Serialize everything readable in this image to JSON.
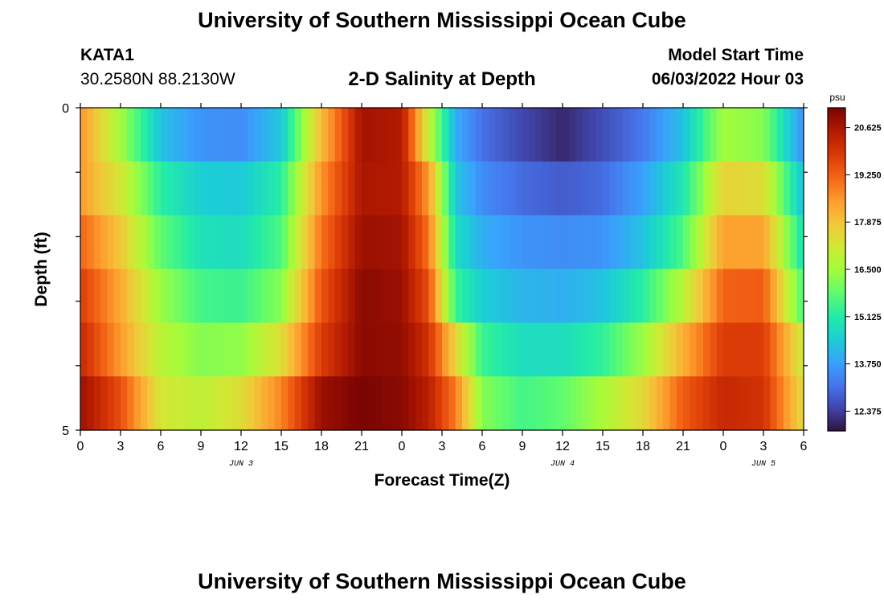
{
  "header": {
    "title": "University of Southern Mississippi Ocean Cube",
    "station_id": "KATA1",
    "coordinates": "30.2580N  88.2130W",
    "subtitle": "2-D Salinity at Depth",
    "model_start_label": "Model Start Time",
    "model_start_value": "06/03/2022 Hour 03",
    "bottom_title": "University of Southern Mississippi Ocean Cube"
  },
  "chart_data": {
    "type": "heatmap",
    "title": "2-D Salinity at Depth",
    "xlabel": "Forecast Time(Z)",
    "ylabel": "Depth (ft)",
    "x_tick_labels": [
      "0",
      "3",
      "6",
      "9",
      "12",
      "15",
      "18",
      "21",
      "0",
      "3",
      "6",
      "9",
      "12",
      "15",
      "18",
      "21",
      "0",
      "3",
      "6"
    ],
    "x_hours": [
      0,
      3,
      6,
      9,
      12,
      15,
      18,
      21,
      24,
      27,
      30,
      33,
      36,
      39,
      42,
      45,
      48,
      51,
      54
    ],
    "date_labels": [
      {
        "label": "JUN 3",
        "hour": 12
      },
      {
        "label": "JUN 4",
        "hour": 36
      },
      {
        "label": "JUN 5",
        "hour": 51
      }
    ],
    "y_tick_labels": [
      "0",
      "5"
    ],
    "ylim": [
      0,
      5
    ],
    "depth_bins": [
      "0-1",
      "1-2",
      "2-3",
      "3-4",
      "4-5"
    ],
    "colorbar": {
      "unit": "psu",
      "tick_labels": [
        "20.625",
        "19.250",
        "17.875",
        "16.500",
        "15.125",
        "13.750",
        "12.375"
      ],
      "ticks": [
        20.625,
        19.25,
        17.875,
        16.5,
        15.125,
        13.75,
        12.375
      ],
      "range": [
        11.8,
        21.2
      ],
      "colors": [
        "#30123b",
        "#4145ab",
        "#4675ed",
        "#39a2fc",
        "#1bcfd4",
        "#24eca6",
        "#61fc6c",
        "#a4fc3b",
        "#d1e834",
        "#f3c63a",
        "#fe9b2d",
        "#f36315",
        "#d93806",
        "#b11901",
        "#7a0403"
      ]
    },
    "series": [
      {
        "depth": "0-1",
        "time_hours": [
          0,
          3,
          6,
          9,
          12,
          15,
          18,
          21,
          24,
          26,
          28,
          30,
          33,
          36,
          39,
          42,
          45,
          48,
          51,
          54
        ],
        "values": [
          18.6,
          16.5,
          14.3,
          13.6,
          13.5,
          14.4,
          18.0,
          20.7,
          20.5,
          17.0,
          14.0,
          13.1,
          12.5,
          12.1,
          12.6,
          13.2,
          14.3,
          16.5,
          16.2,
          13.5
        ]
      },
      {
        "depth": "1-2",
        "time_hours": [
          0,
          3,
          6,
          9,
          12,
          15,
          18,
          21,
          24,
          26,
          28,
          30,
          33,
          36,
          39,
          42,
          45,
          48,
          51,
          54
        ],
        "values": [
          18.5,
          17.2,
          15.2,
          14.5,
          14.4,
          15.2,
          18.6,
          20.6,
          20.5,
          18.5,
          14.4,
          13.5,
          13.0,
          12.8,
          13.0,
          13.8,
          15.0,
          17.6,
          17.4,
          14.2
        ]
      },
      {
        "depth": "2-3",
        "time_hours": [
          0,
          3,
          6,
          9,
          12,
          15,
          18,
          21,
          24,
          26,
          28,
          30,
          33,
          36,
          39,
          42,
          45,
          48,
          51,
          54
        ],
        "values": [
          19.2,
          17.8,
          15.8,
          14.9,
          14.8,
          15.6,
          19.0,
          20.8,
          20.7,
          19.0,
          14.8,
          14.0,
          13.6,
          13.5,
          13.6,
          14.3,
          15.6,
          18.4,
          18.4,
          14.8
        ]
      },
      {
        "depth": "3-4",
        "time_hours": [
          0,
          3,
          6,
          9,
          12,
          15,
          18,
          21,
          24,
          26,
          28,
          30,
          33,
          36,
          39,
          42,
          45,
          48,
          51,
          54
        ],
        "values": [
          19.8,
          18.3,
          16.4,
          15.5,
          15.4,
          16.2,
          19.4,
          21.0,
          20.8,
          19.5,
          15.4,
          14.5,
          14.1,
          14.0,
          14.3,
          15.2,
          16.8,
          19.2,
          19.3,
          15.5
        ]
      },
      {
        "depth": "4-5",
        "time_hours": [
          0,
          3,
          6,
          9,
          12,
          15,
          18,
          21,
          24,
          26,
          28,
          30,
          33,
          36,
          39,
          42,
          45,
          48,
          51,
          54
        ],
        "values": [
          20.2,
          18.5,
          16.8,
          16.2,
          16.3,
          17.4,
          19.8,
          21.0,
          20.9,
          20.0,
          17.6,
          15.4,
          14.8,
          14.8,
          15.3,
          16.4,
          18.2,
          19.8,
          19.8,
          17.0
        ]
      },
      {
        "depth": "5-5",
        "time_hours": [
          0,
          3,
          6,
          9,
          12,
          15,
          18,
          21,
          24,
          26,
          28,
          30,
          33,
          36,
          39,
          42,
          45,
          48,
          51,
          54
        ],
        "values": [
          20.8,
          19.5,
          17.2,
          16.9,
          17.4,
          18.8,
          20.8,
          21.2,
          21.0,
          20.4,
          18.9,
          16.2,
          15.5,
          15.8,
          16.6,
          17.5,
          19.3,
          20.2,
          20.0,
          17.4
        ]
      }
    ]
  }
}
